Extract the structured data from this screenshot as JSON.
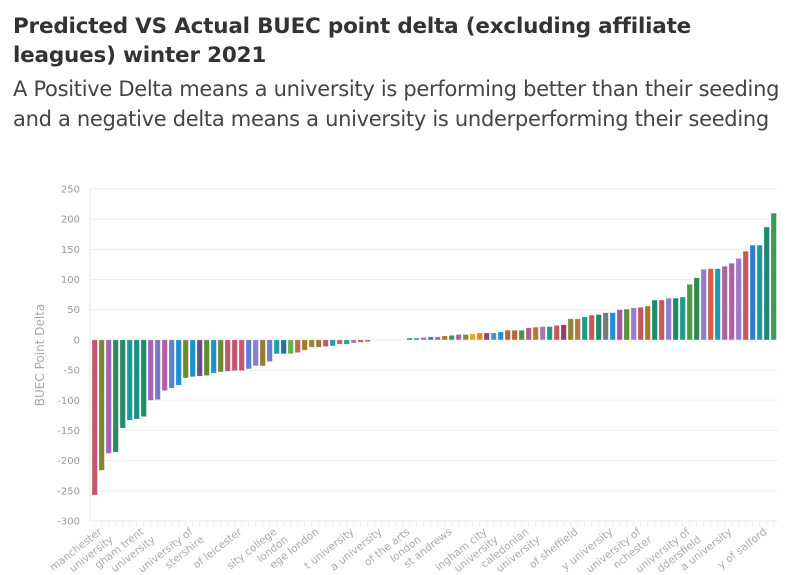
{
  "chart_data": {
    "type": "bar",
    "title": "Predicted VS Actual BUEC point delta (excluding affiliate leagues) winter 2021",
    "subtitle": "A Positive Delta means a university is performing better than their seeding and a negative delta means a university is underperforming their seeding",
    "xlabel": "",
    "ylabel": "BUEC Point Delta",
    "ylim": [
      -300,
      250
    ],
    "yticks": [
      250,
      200,
      150,
      100,
      50,
      0,
      -50,
      -100,
      -150,
      -200,
      -250,
      -300
    ],
    "grid": true,
    "values": [
      -257,
      -216,
      -188,
      -186,
      -146,
      -133,
      -131,
      -127,
      -100,
      -99,
      -84,
      -80,
      -75,
      -63,
      -61,
      -60,
      -59,
      -55,
      -53,
      -52,
      -51,
      -51,
      -48,
      -43,
      -43,
      -36,
      -23,
      -23,
      -23,
      -21,
      -17,
      -12,
      -12,
      -11,
      -10,
      -7,
      -7,
      -5,
      -4,
      -3,
      0,
      0,
      0,
      0,
      0,
      3,
      3,
      4,
      5,
      5,
      6.5,
      7.5,
      9,
      9,
      10,
      11.5,
      11.5,
      11.5,
      13,
      16,
      16,
      16,
      20,
      21,
      22,
      22,
      24,
      25,
      35,
      35,
      38,
      41,
      42,
      45,
      45,
      50,
      51,
      53,
      54,
      56,
      66,
      66,
      69,
      69,
      71,
      92,
      103,
      117,
      118,
      118,
      122,
      127,
      135,
      147,
      157,
      157,
      187,
      210
    ],
    "colors": [
      "#c4566f",
      "#7c8a2e",
      "#a463b5",
      "#2e8b57",
      "#26896b",
      "#1f9a9a",
      "#1b8f86",
      "#1e8a6a",
      "#a463b5",
      "#7777cc",
      "#b35ea6",
      "#5b7fd1",
      "#1f8fcf",
      "#6d8a33",
      "#1f8fcf",
      "#6a4c93",
      "#5a8f3a",
      "#1f8fcf",
      "#6d8a33",
      "#c4566f",
      "#c4566f",
      "#c4566f",
      "#5b7fd1",
      "#8b7fcf",
      "#9a7a2e",
      "#6b7fd1",
      "#1f9ab0",
      "#2e6f9a",
      "#6ab04c",
      "#c26a4a",
      "#a87a2e",
      "#8b8a2e",
      "#9a7a2e",
      "#c45a5a",
      "#1f9ab0",
      "#c26a5a",
      "#1f9ab0",
      "#8b7fcf",
      "#b5673d",
      "#c4566f",
      "#cccccc",
      "#cccccc",
      "#cccccc",
      "#cccccc",
      "#cccccc",
      "#5a8f3a",
      "#1f9ab0",
      "#b35ea6",
      "#1f8fcf",
      "#b35ea6",
      "#9a7a2e",
      "#3a9a5a",
      "#b35ea6",
      "#8b8a2e",
      "#e6a817",
      "#e88a1a",
      "#8b4c7a",
      "#4a8fcf",
      "#1f8fcf",
      "#b5673d",
      "#b5673d",
      "#5a8f3a",
      "#b35e7a",
      "#b5773d",
      "#a47ab5",
      "#1f9a8a",
      "#c45a5a",
      "#9a3a6a",
      "#8b8a2e",
      "#b5773d",
      "#1f9a8a",
      "#c45a5a",
      "#1f8a6a",
      "#777777",
      "#1f8fcf",
      "#a45aa0",
      "#5a8f3a",
      "#9a7acc",
      "#c45a5a",
      "#a87a2e",
      "#1f8a6a",
      "#c45a5a",
      "#8b7fcf",
      "#1f8a6a",
      "#1f9a8a",
      "#4a9a4a",
      "#2e8b57",
      "#8b7fcf",
      "#d4604a",
      "#1f9ab0",
      "#b35ea6",
      "#b35ea6",
      "#9a7acc",
      "#c45a5a",
      "#2e7fcf",
      "#1f9a9a",
      "#1f8a6a",
      "#3a9a5a"
    ],
    "x_tick_labels": [
      {
        "index": 1,
        "lines": [
          "manchester",
          "university"
        ]
      },
      {
        "index": 7,
        "lines": [
          "gham trent",
          "university"
        ]
      },
      {
        "index": 14,
        "lines": [
          "university of",
          "stershire"
        ]
      },
      {
        "index": 21,
        "lines": [
          "of leicester",
          ""
        ]
      },
      {
        "index": 26,
        "lines": [
          "sity college",
          "london"
        ]
      },
      {
        "index": 32,
        "lines": [
          "ege london",
          ""
        ]
      },
      {
        "index": 37,
        "lines": [
          "t university",
          ""
        ]
      },
      {
        "index": 41,
        "lines": [
          "a university",
          ""
        ]
      },
      {
        "index": 45,
        "lines": [
          "of the arts",
          "london"
        ]
      },
      {
        "index": 51,
        "lines": [
          "st andrews",
          ""
        ]
      },
      {
        "index": 56,
        "lines": [
          "ingham city",
          "university"
        ]
      },
      {
        "index": 62,
        "lines": [
          "caledonian",
          "university"
        ]
      },
      {
        "index": 69,
        "lines": [
          "of sheffield",
          ""
        ]
      },
      {
        "index": 74,
        "lines": [
          "y university",
          ""
        ]
      },
      {
        "index": 78,
        "lines": [
          "university of",
          "nchester"
        ]
      },
      {
        "index": 85,
        "lines": [
          "university of",
          "ddersfield"
        ]
      },
      {
        "index": 91,
        "lines": [
          "a university",
          ""
        ]
      },
      {
        "index": 96,
        "lines": [
          "y of salford",
          ""
        ]
      }
    ]
  }
}
